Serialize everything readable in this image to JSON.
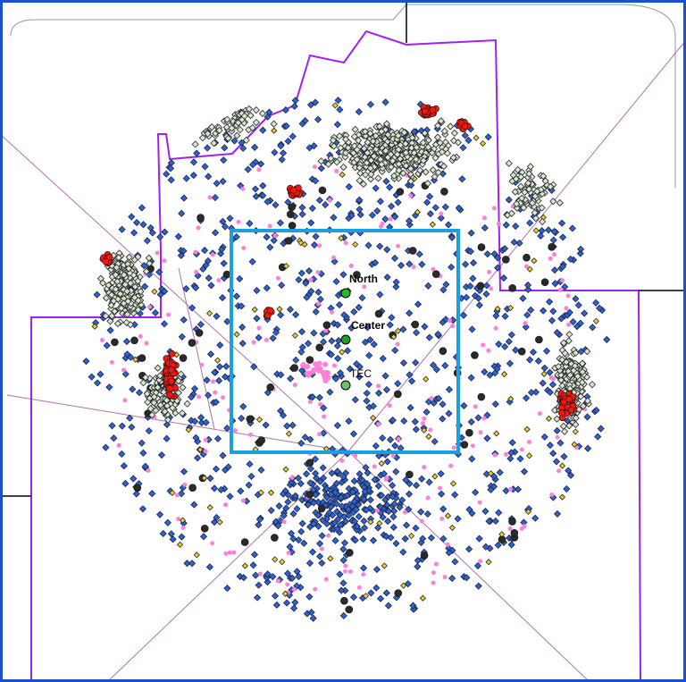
{
  "sites": [
    {
      "label": "North"
    },
    {
      "label": "Center"
    },
    {
      "label": "TEC"
    }
  ]
}
